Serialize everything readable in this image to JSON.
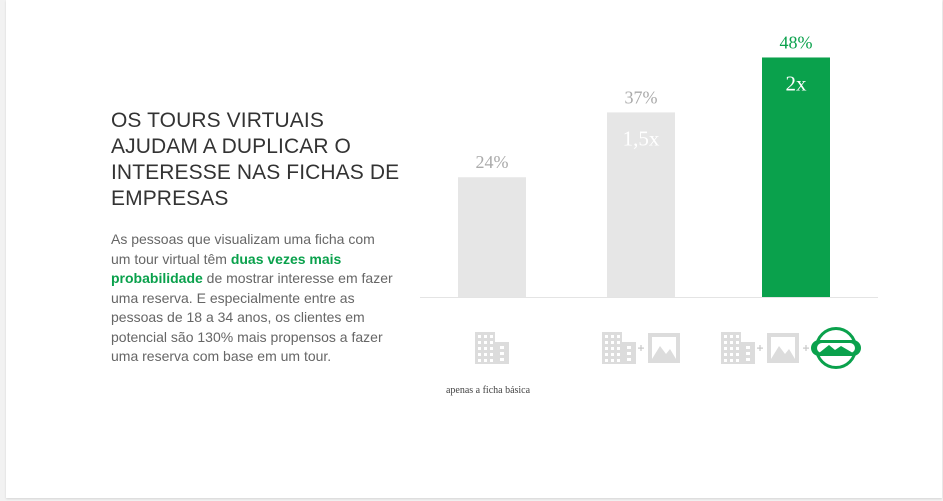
{
  "headline": "OS TOURS VIRTUAIS AJUDAM A DUPLICAR O INTERESSE NAS FICHAS DE EMPRESAS",
  "body": {
    "before": "As pessoas que visualizam uma ficha com um tour virtual têm ",
    "highlight": "duas vezes mais probabilidade",
    "after": " de mostrar interesse em fazer uma reserva. E especialmente entre as pessoas de 18 a 34 anos, os clientes em potencial são 130% mais propensos a fazer uma reserva com base em um tour."
  },
  "colors": {
    "accent": "#0aa14c",
    "bar_gray": "#e6e6e6",
    "icon_gray": "#dcdcdc",
    "label_gray": "#aaaaaa"
  },
  "chart_data": {
    "type": "bar",
    "categories": [
      "apenas a ficha básica",
      "ficha + foto",
      "ficha + foto + tour virtual"
    ],
    "values": [
      24,
      37,
      48
    ],
    "value_labels": [
      "24%",
      "37%",
      "48%"
    ],
    "multipliers": [
      "",
      "1,5x",
      "2x"
    ],
    "highlight_index": 2,
    "ylim": [
      0,
      50
    ],
    "category_icons": [
      [
        "building-icon"
      ],
      [
        "building-icon",
        "plus-icon",
        "image-icon"
      ],
      [
        "building-icon",
        "plus-icon",
        "image-icon",
        "plus-icon",
        "vr-tour-icon"
      ]
    ],
    "footnote": "apenas a ficha básica"
  }
}
